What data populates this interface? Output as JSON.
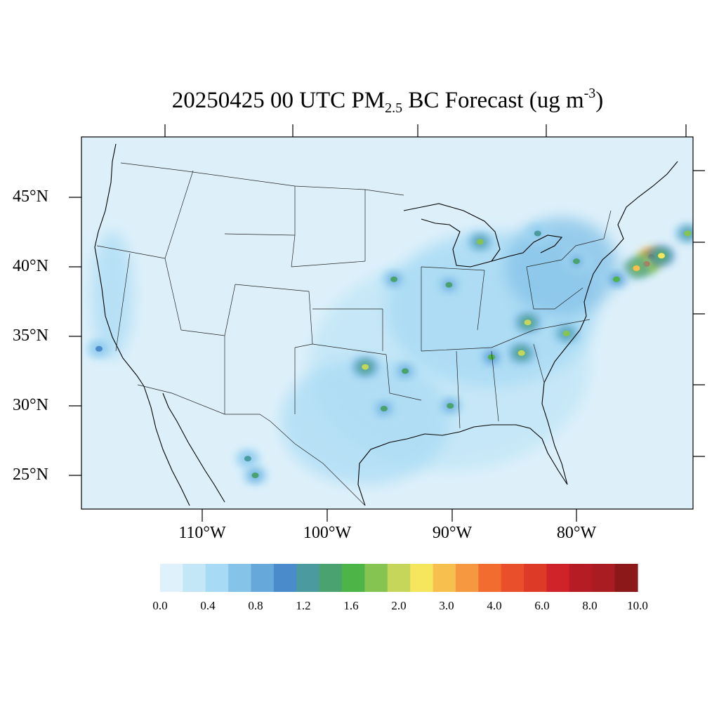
{
  "title": {
    "prefix": "20250425 00 UTC PM",
    "sub": "2.5",
    "middle": " BC Forecast (ug m",
    "sup": "-3",
    "suffix": ")"
  },
  "lat_labels": [
    "45°N",
    "40°N",
    "35°N",
    "30°N",
    "25°N"
  ],
  "lon_labels": [
    "110°W",
    "100°W",
    "90°W",
    "80°W"
  ],
  "colorbar": {
    "colors": [
      "#dff1fa",
      "#c4e7f7",
      "#a7daf4",
      "#86c3e8",
      "#67a8db",
      "#4a8bcc",
      "#4a9aa0",
      "#4aa36e",
      "#4db448",
      "#86c452",
      "#c5d65a",
      "#f6e65e",
      "#f6bf4e",
      "#f59840",
      "#f16c2e",
      "#e94f2b",
      "#dd3a28",
      "#cf2229",
      "#b61c24",
      "#a91c21",
      "#8d1819"
    ],
    "labels": [
      "0.0",
      "0.4",
      "0.8",
      "1.2",
      "1.6",
      "2.0",
      "3.0",
      "4.0",
      "6.0",
      "8.0",
      "10.0"
    ]
  },
  "map": {
    "background_color": "#ddf0fa",
    "hotspots": [
      {
        "name": "new-york-metro",
        "lon": -74.0,
        "lat": 40.7,
        "level": 18
      },
      {
        "name": "new-jersey",
        "lon": -74.4,
        "lat": 40.2,
        "level": 14
      },
      {
        "name": "philadelphia",
        "lon": -75.2,
        "lat": 39.9,
        "level": 12
      },
      {
        "name": "long-island",
        "lon": -73.2,
        "lat": 40.8,
        "level": 11
      },
      {
        "name": "boston",
        "lon": -71.1,
        "lat": 42.4,
        "level": 9
      },
      {
        "name": "baltimore-washington",
        "lon": -76.8,
        "lat": 39.1,
        "level": 8
      },
      {
        "name": "chicago",
        "lon": -87.7,
        "lat": 41.8,
        "level": 9
      },
      {
        "name": "st-louis",
        "lon": -90.2,
        "lat": 38.7,
        "level": 7
      },
      {
        "name": "kansas-city",
        "lon": -94.6,
        "lat": 39.1,
        "level": 7
      },
      {
        "name": "dallas",
        "lon": -96.9,
        "lat": 32.8,
        "level": 10
      },
      {
        "name": "atlanta",
        "lon": -84.4,
        "lat": 33.8,
        "level": 10
      },
      {
        "name": "charlotte",
        "lon": -80.8,
        "lat": 35.2,
        "level": 9
      },
      {
        "name": "birmingham",
        "lon": -86.8,
        "lat": 33.5,
        "level": 8
      },
      {
        "name": "knoxville",
        "lon": -83.9,
        "lat": 36.0,
        "level": 10
      },
      {
        "name": "houston",
        "lon": -95.4,
        "lat": 29.8,
        "level": 7
      },
      {
        "name": "new-orleans",
        "lon": -90.1,
        "lat": 30.0,
        "level": 7
      },
      {
        "name": "shreveport",
        "lon": -93.7,
        "lat": 32.5,
        "level": 7
      },
      {
        "name": "pittsburgh",
        "lon": -80.0,
        "lat": 40.4,
        "level": 7
      },
      {
        "name": "detroit",
        "lon": -83.1,
        "lat": 42.4,
        "level": 6
      },
      {
        "name": "los-angeles",
        "lon": -118.2,
        "lat": 34.1,
        "level": 5
      },
      {
        "name": "mexico-north",
        "lon": -106.3,
        "lat": 26.2,
        "level": 6
      },
      {
        "name": "mexico-south",
        "lon": -105.7,
        "lat": 25.0,
        "level": 7
      }
    ]
  }
}
